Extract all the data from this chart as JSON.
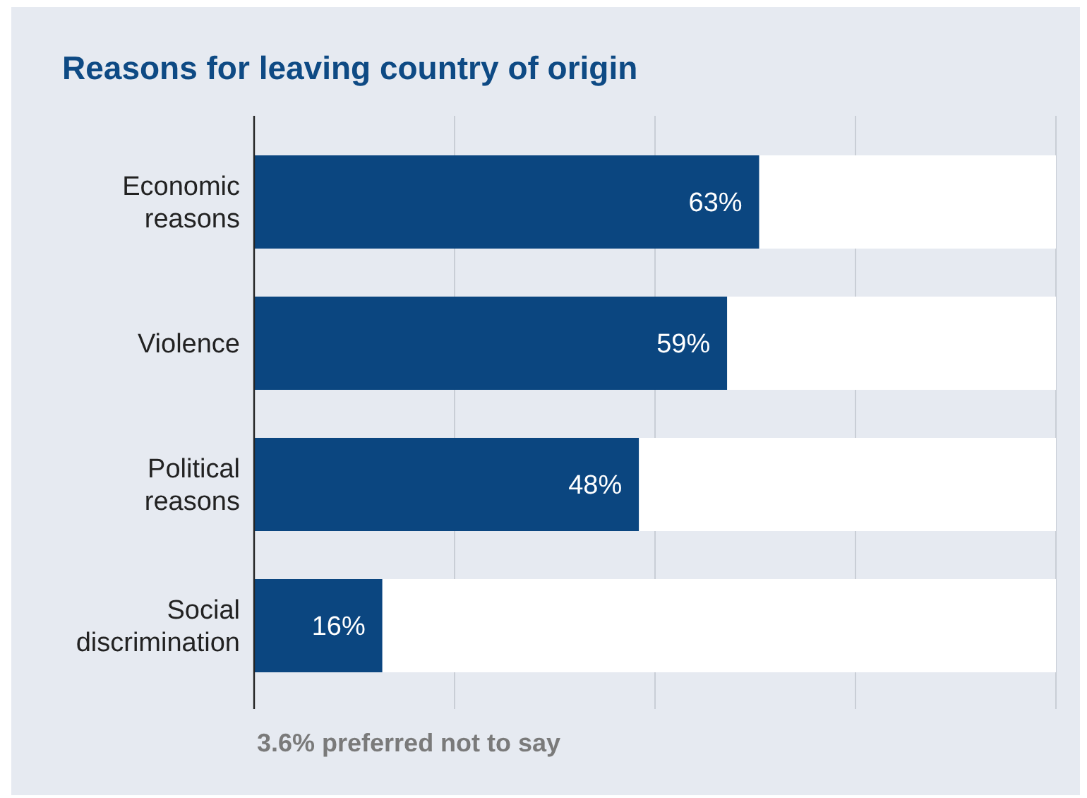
{
  "chart_data": {
    "type": "bar",
    "orientation": "horizontal",
    "stacked": true,
    "title": "Reasons for leaving country of origin",
    "categories": [
      "Economic reasons",
      "Violence",
      "Political reasons",
      "Social discrimination"
    ],
    "series": [
      {
        "color": "#0b4680",
        "values": [
          63,
          59,
          48,
          16
        ],
        "value_labels": [
          "63%",
          "59%",
          "48%",
          "16%"
        ]
      },
      {
        "color": "#ffffff",
        "values": [
          37,
          41,
          52,
          84
        ]
      }
    ],
    "xlim": [
      0,
      100
    ],
    "xticks": [
      {
        "value": 0,
        "label": null
      },
      {
        "value": 25,
        "label": null
      },
      {
        "value": 50,
        "label": null
      },
      {
        "value": 75,
        "label": null
      },
      {
        "value": 100,
        "label": null
      }
    ],
    "tick_labels": "y",
    "grid": "x",
    "annotations": [
      "3.6% preferred not to say"
    ]
  }
}
